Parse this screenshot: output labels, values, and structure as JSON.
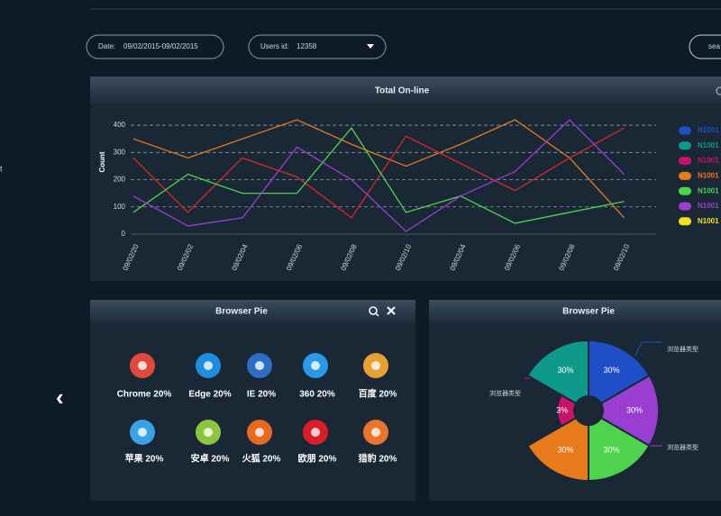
{
  "filters": {
    "date_label": "Date:",
    "date_value": "09/02/2015-09/02/2015",
    "user_label": "Users id:",
    "user_value": "12358",
    "search": "sea"
  },
  "sidebar": {
    "letter": "t"
  },
  "line_panel": {
    "title": "Total On-line",
    "chart": {
      "type": "line",
      "y_label": "Count",
      "categories": [
        "09/02/20",
        "09/02/02",
        "09/02/04",
        "09/02/06",
        "09/02/08",
        "09/02/10",
        "09/02/04",
        "09/02/06",
        "09/02/08",
        "09/02/10"
      ],
      "ylim": [
        0,
        430
      ],
      "yticks": [
        0,
        100,
        200,
        300,
        400
      ],
      "grid": true,
      "series": [
        {
          "name": "N1001",
          "color": "#1e4fc8"
        },
        {
          "name": "N1001",
          "color": "#0e9a8a"
        },
        {
          "name": "N1001",
          "color": "#c8126a"
        },
        {
          "name": "N1001",
          "color": "#e77a1a"
        },
        {
          "name": "N1001",
          "color": "#4ed34e"
        },
        {
          "name": "N1001",
          "color": "#9a3ed0"
        },
        {
          "name": "N1001",
          "color": "#f0e21a"
        }
      ],
      "lines": [
        {
          "color": "#e77a1a",
          "values": [
            350,
            280,
            350,
            420,
            330,
            250,
            330,
            420,
            280,
            60
          ]
        },
        {
          "color": "#d8262a",
          "values": [
            280,
            80,
            280,
            210,
            60,
            360,
            260,
            160,
            280,
            390
          ]
        },
        {
          "color": "#4ed34e",
          "values": [
            80,
            220,
            150,
            150,
            390,
            80,
            140,
            40,
            80,
            120
          ]
        },
        {
          "color": "#9a3ed0",
          "values": [
            140,
            30,
            60,
            320,
            200,
            10,
            140,
            230,
            420,
            220
          ]
        }
      ]
    }
  },
  "browser_panel": {
    "title": "Browser Pie",
    "items": [
      {
        "label": "Chrome 20%",
        "color": "#e04a3a"
      },
      {
        "label": "Edge 20%",
        "color": "#1e8ee0"
      },
      {
        "label": "IE 20%",
        "color": "#2a6ec8"
      },
      {
        "label": "360 20%",
        "color": "#2a9ae8"
      },
      {
        "label": "百度  20%",
        "color": "#e8a030"
      },
      {
        "label": "苹果  20%",
        "color": "#3aa0e8"
      },
      {
        "label": "安卓  20%",
        "color": "#8cc63f"
      },
      {
        "label": "火狐  20%",
        "color": "#e86a20"
      },
      {
        "label": "欧朋  20%",
        "color": "#d81e2a"
      },
      {
        "label": "猎豹  20%",
        "color": "#e8762a"
      }
    ]
  },
  "pie_panel": {
    "title": "Browser Pie",
    "chart": {
      "type": "rose",
      "values": [
        30,
        30,
        30,
        30,
        3,
        30
      ],
      "value_labels": [
        "30%",
        "30%",
        "30%",
        "30%",
        "3%",
        "30%"
      ],
      "colors": [
        "#1e4fc8",
        "#9a3ed0",
        "#4ed34e",
        "#e77a1a",
        "#c8126a",
        "#0e9a8a"
      ],
      "callouts": [
        "浏览器类型",
        "浏览器类型",
        "浏览器类型"
      ]
    }
  }
}
